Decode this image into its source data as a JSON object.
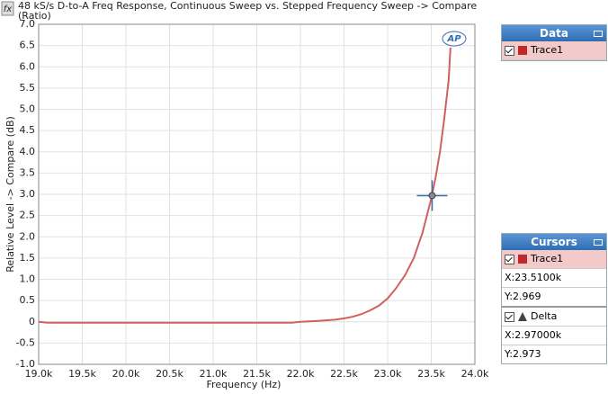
{
  "chart_data": {
    "type": "line",
    "title": "48 kS/s D-to-A Freq Response, Continuous Sweep vs. Stepped Frequency Sweep -> Compare",
    "title_line2": "(Ratio)",
    "icon": "fx",
    "logo": "AP",
    "x_label": "Frequency (Hz)",
    "y_label": "Relative Level -> Compare (dB)",
    "x": [
      19000,
      19100,
      19500,
      20000,
      20500,
      21000,
      21500,
      21900,
      22000,
      22200,
      22400,
      22500,
      22600,
      22700,
      22800,
      22900,
      23000,
      23100,
      23200,
      23300,
      23400,
      23500,
      23550,
      23600,
      23650,
      23700,
      23720
    ],
    "series": [
      {
        "name": "Trace1",
        "color": "#d0605e",
        "values": [
          0,
          -0.02,
          -0.02,
          -0.02,
          -0.02,
          -0.02,
          -0.02,
          -0.02,
          0,
          0.02,
          0.05,
          0.08,
          0.12,
          0.18,
          0.27,
          0.38,
          0.55,
          0.8,
          1.1,
          1.5,
          2.1,
          2.9,
          3.4,
          4.0,
          4.8,
          5.7,
          6.45
        ]
      }
    ],
    "cursor": {
      "x": 23510,
      "y": 2.969
    },
    "xlim": [
      19000,
      24000
    ],
    "ylim": [
      -1,
      7
    ],
    "xticks": [
      {
        "value": 19000,
        "label": "19.0k"
      },
      {
        "value": 19500,
        "label": "19.5k"
      },
      {
        "value": 20000,
        "label": "20.0k"
      },
      {
        "value": 20500,
        "label": "20.5k"
      },
      {
        "value": 21000,
        "label": "21.0k"
      },
      {
        "value": 21500,
        "label": "21.5k"
      },
      {
        "value": 22000,
        "label": "22.0k"
      },
      {
        "value": 22500,
        "label": "22.5k"
      },
      {
        "value": 23000,
        "label": "23.0k"
      },
      {
        "value": 23500,
        "label": "23.5k"
      },
      {
        "value": 24000,
        "label": "24.0k"
      }
    ],
    "yticks": [
      {
        "value": -1,
        "label": "-1.0"
      },
      {
        "value": -0.5,
        "label": "-0.5"
      },
      0,
      {
        "value": 0.5,
        "label": "0.5"
      },
      {
        "value": 1,
        "label": "1.0"
      },
      {
        "value": 1.5,
        "label": "1.5"
      },
      {
        "value": 2,
        "label": "2.0"
      },
      {
        "value": 2.5,
        "label": "2.5"
      },
      {
        "value": 3,
        "label": "3.0"
      },
      {
        "value": 3.5,
        "label": "3.5"
      },
      {
        "value": 4,
        "label": "4.0"
      },
      {
        "value": 4.5,
        "label": "4.5"
      },
      {
        "value": 5,
        "label": "5.0"
      },
      {
        "value": 5.5,
        "label": "5.5"
      },
      {
        "value": 6,
        "label": "6.0"
      },
      {
        "value": 6.5,
        "label": "6.5"
      },
      {
        "value": 7,
        "label": "7.0"
      }
    ],
    "grid": true
  },
  "panels": {
    "data": {
      "title": "Data",
      "rows": [
        "Trace1"
      ]
    },
    "cursors": {
      "title": "Cursors",
      "trace": "Trace1",
      "x": "X:23.5100k",
      "y": "Y:2.969",
      "delta": "Delta",
      "dx": "X:2.97000k",
      "dy": "Y:2.973"
    }
  }
}
